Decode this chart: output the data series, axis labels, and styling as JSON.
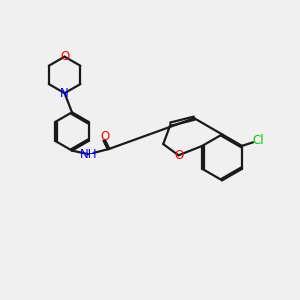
{
  "bg_color": "#f0f0f0",
  "bond_color": "#1a1a1a",
  "O_color": "#ff0000",
  "N_color": "#0000ff",
  "Cl_color": "#00cc00",
  "lw": 1.6,
  "fs": 8.5,
  "dbl_off": 0.055,
  "xlim": [
    0,
    10
  ],
  "ylim": [
    0,
    10
  ]
}
